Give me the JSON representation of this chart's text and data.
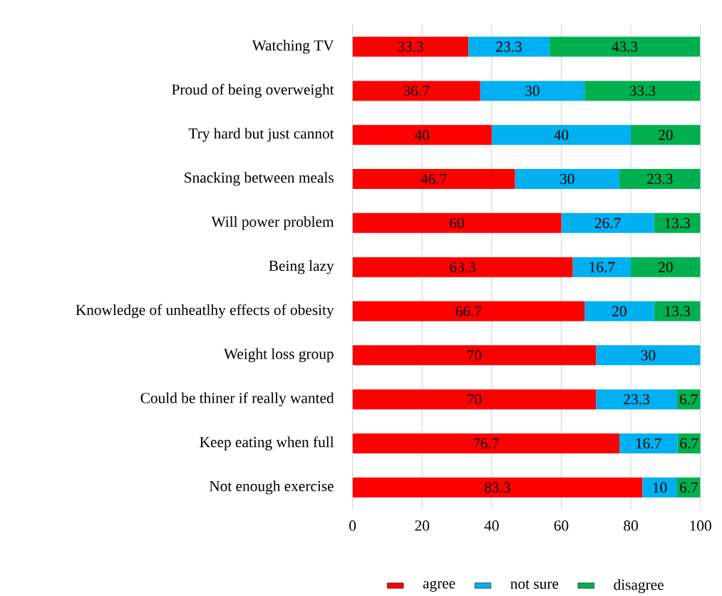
{
  "chart_data": {
    "type": "bar",
    "orientation": "horizontal",
    "stacked": true,
    "categories": [
      "Watching TV",
      "Proud of being overweight",
      "Try hard but just cannot",
      "Snacking between meals",
      "Will power problem",
      "Being lazy",
      "Knowledge of unheatlhy effects of obesity",
      "Weight loss group",
      "Could be thiner if really wanted",
      "Keep eating when full",
      "Not enough exercise"
    ],
    "series": [
      {
        "name": "agree",
        "color": "#ff0000",
        "values": [
          33.3,
          36.7,
          40,
          46.7,
          60,
          63.3,
          66.7,
          70,
          70,
          76.7,
          83.3
        ]
      },
      {
        "name": "not sure",
        "color": "#00b0f0",
        "values": [
          23.3,
          30,
          40,
          30,
          26.7,
          16.7,
          20,
          30,
          23.3,
          16.7,
          10
        ]
      },
      {
        "name": "disagree",
        "color": "#00b050",
        "values": [
          43.3,
          33.3,
          20,
          23.3,
          13.3,
          20,
          13.3,
          null,
          6.7,
          6.7,
          6.7
        ]
      }
    ],
    "xlim": [
      0,
      100
    ],
    "xticks": [
      0,
      20,
      40,
      60,
      80,
      100
    ],
    "grid": "x",
    "legend": "bottom",
    "data_labels": true
  }
}
